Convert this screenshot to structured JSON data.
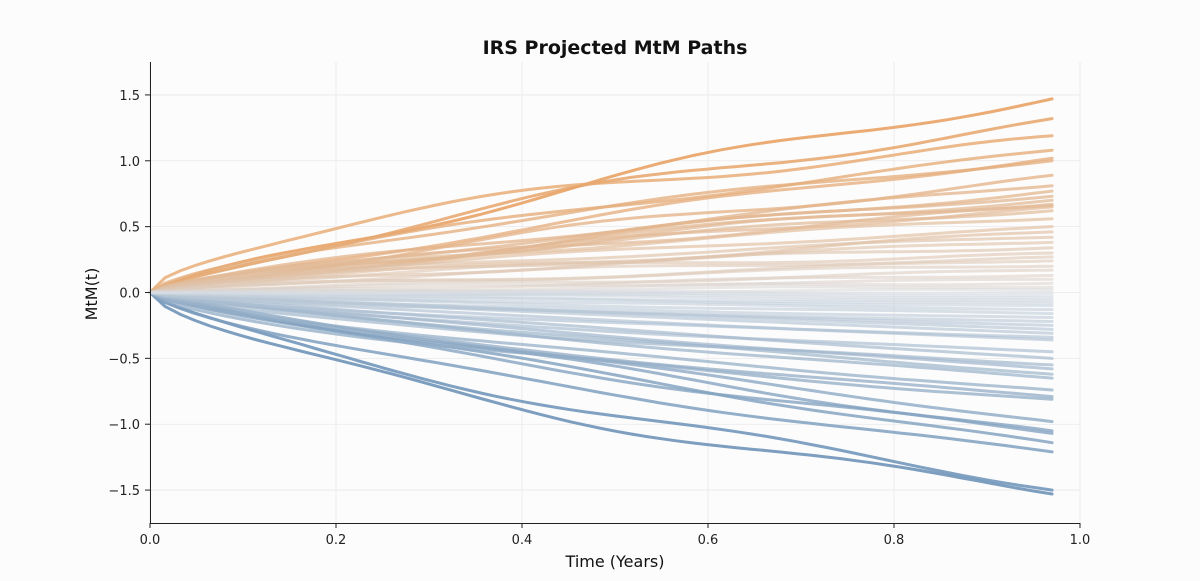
{
  "chart_data": {
    "type": "line",
    "title": "IRS Projected MtM Paths",
    "xlabel": "Time (Years)",
    "ylabel": "MtM(t)",
    "xlim": [
      0.0,
      1.0
    ],
    "ylim": [
      -1.75,
      1.75
    ],
    "xticks": [
      0.0,
      0.2,
      0.4,
      0.6,
      0.8,
      1.0
    ],
    "xtick_labels": [
      "0.0",
      "0.2",
      "0.4",
      "0.6",
      "0.8",
      "1.0"
    ],
    "yticks": [
      -1.5,
      -1.0,
      -0.5,
      0.0,
      0.5,
      1.0,
      1.5
    ],
    "ytick_labels": [
      "−1.5",
      "−1.0",
      "−0.5",
      "0.0",
      "0.5",
      "1.0",
      "1.5"
    ],
    "grid": true,
    "x_start": 0.0,
    "x_end": 0.97,
    "colormap": {
      "positive": "#e8a060",
      "neutral": "#d8dde3",
      "negative": "#6f94b8"
    },
    "series_end_values": [
      1.47,
      1.32,
      1.19,
      1.08,
      1.02,
      1.0,
      0.89,
      0.81,
      0.77,
      0.73,
      0.7,
      0.67,
      0.66,
      0.65,
      0.62,
      0.56,
      0.5,
      0.46,
      0.42,
      0.38,
      0.34,
      0.3,
      0.27,
      0.24,
      0.2,
      0.17,
      0.13,
      0.1,
      0.07,
      0.04,
      0.02,
      0.0,
      -0.02,
      -0.04,
      -0.06,
      -0.08,
      -0.1,
      -0.13,
      -0.16,
      -0.19,
      -0.22,
      -0.25,
      -0.28,
      -0.31,
      -0.34,
      -0.36,
      -0.45,
      -0.5,
      -0.55,
      -0.58,
      -0.62,
      -0.65,
      -0.74,
      -0.79,
      -0.81,
      -0.98,
      -1.05,
      -1.07,
      -1.14,
      -1.21,
      -1.5,
      -1.53
    ]
  }
}
